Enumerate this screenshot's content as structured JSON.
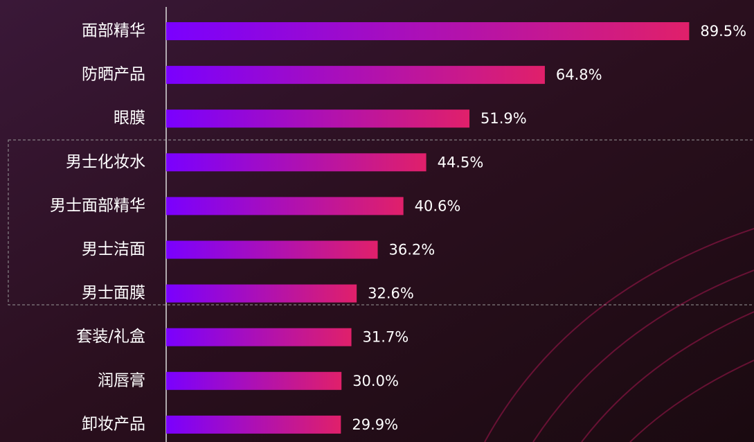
{
  "chart_data": {
    "type": "bar",
    "orientation": "horizontal",
    "categories": [
      "面部精华",
      "防晒产品",
      "眼膜",
      "男士化妆水",
      "男士面部精华",
      "男士洁面",
      "男士面膜",
      "套装/礼盒",
      "润唇膏",
      "卸妆产品"
    ],
    "values": [
      89.5,
      64.8,
      51.9,
      44.5,
      40.6,
      36.2,
      32.6,
      31.7,
      30.0,
      29.9
    ],
    "value_labels": [
      "89.5%",
      "64.8%",
      "51.9%",
      "44.5%",
      "40.6%",
      "36.2%",
      "32.6%",
      "31.7%",
      "30.0%",
      "29.9%"
    ],
    "color": [
      "#7a00ff",
      "#e0206a"
    ]
  }
}
